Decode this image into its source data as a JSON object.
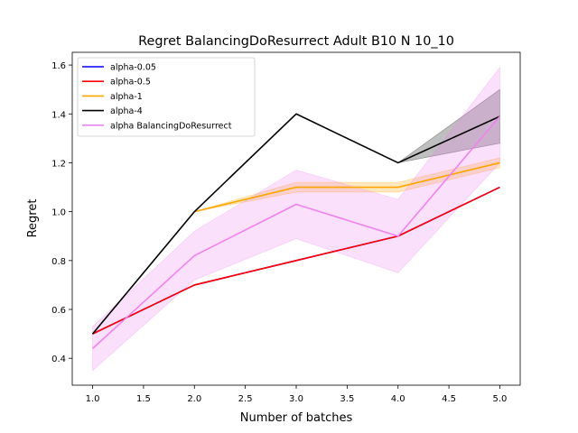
{
  "chart_data": {
    "type": "line",
    "title": "Regret BalancingDoResurrect Adult B10 N 10_10",
    "xlabel": "Number of batches",
    "ylabel": "Regret",
    "x": [
      1,
      2,
      3,
      4,
      5
    ],
    "xlim": [
      0.8,
      5.2
    ],
    "ylim": [
      0.29,
      1.652
    ],
    "xticks": [
      "1.0",
      "1.5",
      "2.0",
      "2.5",
      "3.0",
      "3.5",
      "4.0",
      "4.5",
      "5.0"
    ],
    "yticks": [
      "0.4",
      "0.6",
      "0.8",
      "1.0",
      "1.2",
      "1.4",
      "1.6"
    ],
    "grid": false,
    "legend_position": "top-left",
    "series": [
      {
        "name": "alpha-0.05",
        "color": "#0000ff",
        "values": [
          0.5,
          0.7,
          0.8,
          0.9,
          1.1
        ]
      },
      {
        "name": "alpha-0.5",
        "color": "#ff0000",
        "values": [
          0.5,
          0.7,
          0.8,
          0.9,
          1.1
        ]
      },
      {
        "name": "alpha-1",
        "color": "#ffa500",
        "values": [
          null,
          1.0,
          1.1,
          1.1,
          1.2
        ],
        "band_lower": [
          null,
          1.0,
          1.08,
          1.08,
          1.18
        ],
        "band_upper": [
          null,
          1.0,
          1.12,
          1.12,
          1.22
        ]
      },
      {
        "name": "alpha-4",
        "color": "#000000",
        "values": [
          0.5,
          1.0,
          1.4,
          1.2,
          1.39
        ],
        "band_lower": [
          null,
          null,
          null,
          1.2,
          1.28
        ],
        "band_upper": [
          null,
          null,
          null,
          1.2,
          1.5
        ]
      },
      {
        "name": "alpha BalancingDoResurrect",
        "color": "#ee82ee",
        "values": [
          0.44,
          0.82,
          1.03,
          0.9,
          1.39
        ],
        "band_lower": [
          0.35,
          0.72,
          0.89,
          0.75,
          1.2
        ],
        "band_upper": [
          0.53,
          0.92,
          1.17,
          1.05,
          1.59
        ]
      }
    ]
  }
}
